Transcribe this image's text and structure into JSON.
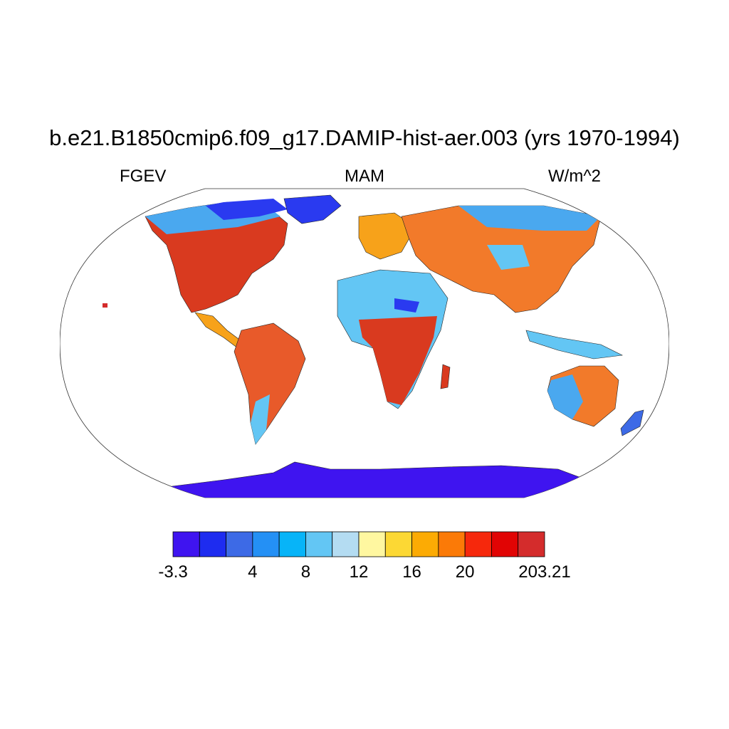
{
  "title": "b.e21.B1850cmip6.f09_g17.DAMIP-hist-aer.003 (yrs 1970-1994)",
  "left_label": "FGEV",
  "center_label": "MAM",
  "right_label": "W/m^2",
  "colorbar": {
    "colors": [
      "#3f14f0",
      "#1e2cf0",
      "#3d6ae6",
      "#2490f5",
      "#07b4f8",
      "#63c6f4",
      "#b4dcf2",
      "#fff7a0",
      "#fcd834",
      "#fcab04",
      "#fb7a07",
      "#f6280c",
      "#e10404",
      "#d42c2c"
    ],
    "labels": [
      {
        "text": "-3.3",
        "boundary": 0
      },
      {
        "text": "4",
        "boundary": 3
      },
      {
        "text": "8",
        "boundary": 5
      },
      {
        "text": "12",
        "boundary": 7
      },
      {
        "text": "16",
        "boundary": 9
      },
      {
        "text": "20",
        "boundary": 11
      },
      {
        "text": "203.21",
        "boundary": 14
      }
    ]
  }
}
